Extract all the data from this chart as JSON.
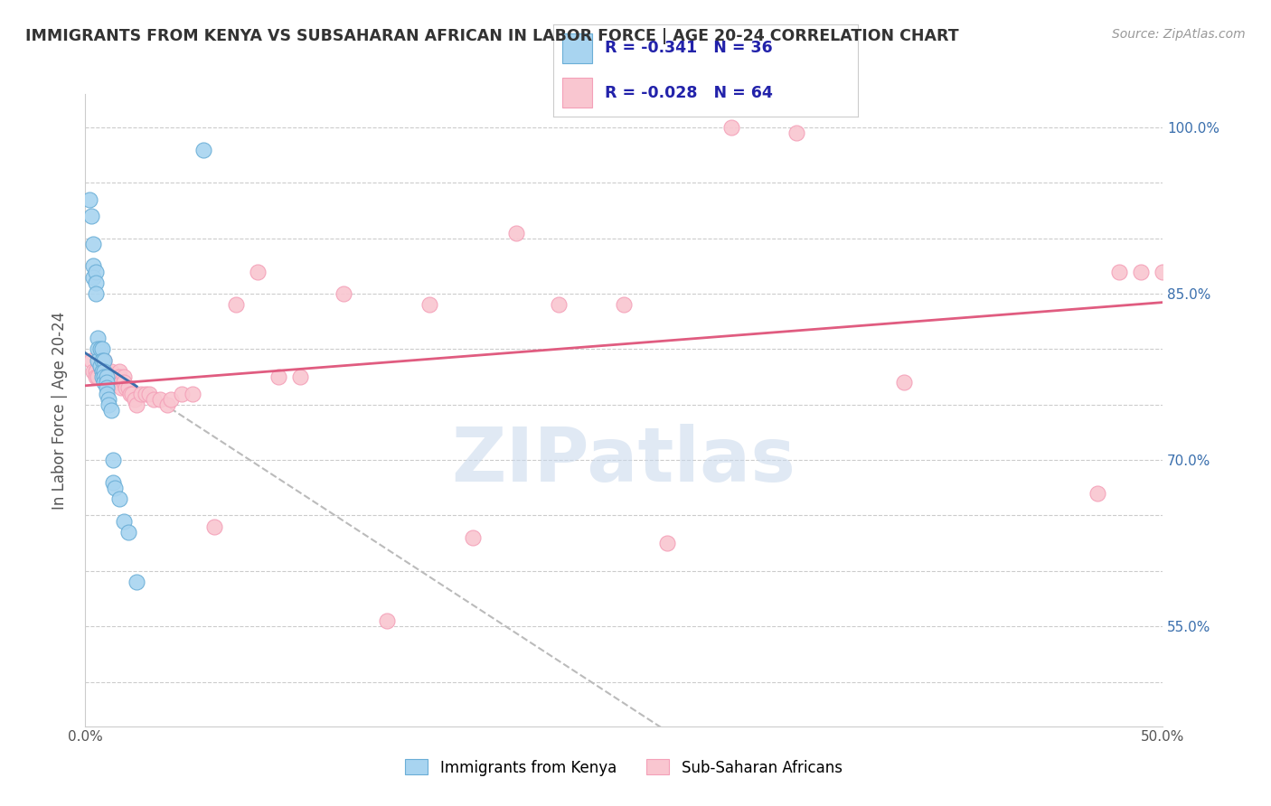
{
  "title": "IMMIGRANTS FROM KENYA VS SUBSAHARAN AFRICAN IN LABOR FORCE | AGE 20-24 CORRELATION CHART",
  "source": "Source: ZipAtlas.com",
  "ylabel": "In Labor Force | Age 20-24",
  "x_min": 0.0,
  "x_max": 0.5,
  "y_min": 0.46,
  "y_max": 1.03,
  "x_ticks": [
    0.0,
    0.1,
    0.2,
    0.3,
    0.4,
    0.5
  ],
  "x_tick_labels": [
    "0.0%",
    "",
    "",
    "",
    "",
    "50.0%"
  ],
  "y_ticks": [
    0.5,
    0.55,
    0.6,
    0.65,
    0.7,
    0.75,
    0.8,
    0.85,
    0.9,
    0.95,
    1.0
  ],
  "y_tick_labels_right": [
    "",
    "55.0%",
    "",
    "",
    "70.0%",
    "",
    "",
    "85.0%",
    "",
    "",
    "100.0%"
  ],
  "kenya_R": "-0.341",
  "kenya_N": "36",
  "subsaharan_R": "-0.028",
  "subsaharan_N": "64",
  "kenya_color": "#a8d4f0",
  "kenya_edge_color": "#6aaed6",
  "subsaharan_color": "#f9c6d0",
  "subsaharan_edge_color": "#f4a0b8",
  "kenya_line_color": "#3a6fad",
  "subsaharan_line_color": "#e05c80",
  "background_color": "#ffffff",
  "watermark": "ZIPatlas",
  "kenya_x": [
    0.002,
    0.003,
    0.004,
    0.004,
    0.004,
    0.005,
    0.005,
    0.005,
    0.006,
    0.006,
    0.006,
    0.007,
    0.007,
    0.008,
    0.008,
    0.008,
    0.008,
    0.009,
    0.009,
    0.009,
    0.009,
    0.01,
    0.01,
    0.01,
    0.01,
    0.011,
    0.011,
    0.012,
    0.013,
    0.013,
    0.014,
    0.016,
    0.018,
    0.02,
    0.024,
    0.055
  ],
  "kenya_y": [
    0.935,
    0.92,
    0.895,
    0.875,
    0.865,
    0.87,
    0.86,
    0.85,
    0.81,
    0.8,
    0.79,
    0.8,
    0.785,
    0.8,
    0.79,
    0.78,
    0.775,
    0.79,
    0.78,
    0.775,
    0.77,
    0.775,
    0.77,
    0.765,
    0.76,
    0.755,
    0.75,
    0.745,
    0.7,
    0.68,
    0.675,
    0.665,
    0.645,
    0.635,
    0.59,
    0.98
  ],
  "subsaharan_x": [
    0.003,
    0.004,
    0.005,
    0.005,
    0.006,
    0.007,
    0.007,
    0.008,
    0.008,
    0.009,
    0.009,
    0.01,
    0.01,
    0.011,
    0.011,
    0.012,
    0.012,
    0.013,
    0.013,
    0.014,
    0.014,
    0.015,
    0.015,
    0.016,
    0.016,
    0.017,
    0.017,
    0.018,
    0.018,
    0.019,
    0.02,
    0.021,
    0.022,
    0.023,
    0.024,
    0.026,
    0.028,
    0.03,
    0.032,
    0.035,
    0.038,
    0.04,
    0.045,
    0.05,
    0.06,
    0.07,
    0.08,
    0.09,
    0.1,
    0.12,
    0.14,
    0.16,
    0.18,
    0.2,
    0.22,
    0.25,
    0.27,
    0.3,
    0.33,
    0.38,
    0.47,
    0.48,
    0.49,
    0.5
  ],
  "subsaharan_y": [
    0.79,
    0.78,
    0.78,
    0.775,
    0.775,
    0.795,
    0.785,
    0.785,
    0.78,
    0.79,
    0.785,
    0.78,
    0.775,
    0.775,
    0.77,
    0.78,
    0.775,
    0.775,
    0.77,
    0.775,
    0.77,
    0.775,
    0.77,
    0.78,
    0.775,
    0.77,
    0.765,
    0.775,
    0.77,
    0.765,
    0.765,
    0.76,
    0.76,
    0.755,
    0.75,
    0.76,
    0.76,
    0.76,
    0.755,
    0.755,
    0.75,
    0.755,
    0.76,
    0.76,
    0.64,
    0.84,
    0.87,
    0.775,
    0.775,
    0.85,
    0.555,
    0.84,
    0.63,
    0.905,
    0.84,
    0.84,
    0.625,
    1.0,
    0.995,
    0.77,
    0.67,
    0.87,
    0.87,
    0.87
  ]
}
